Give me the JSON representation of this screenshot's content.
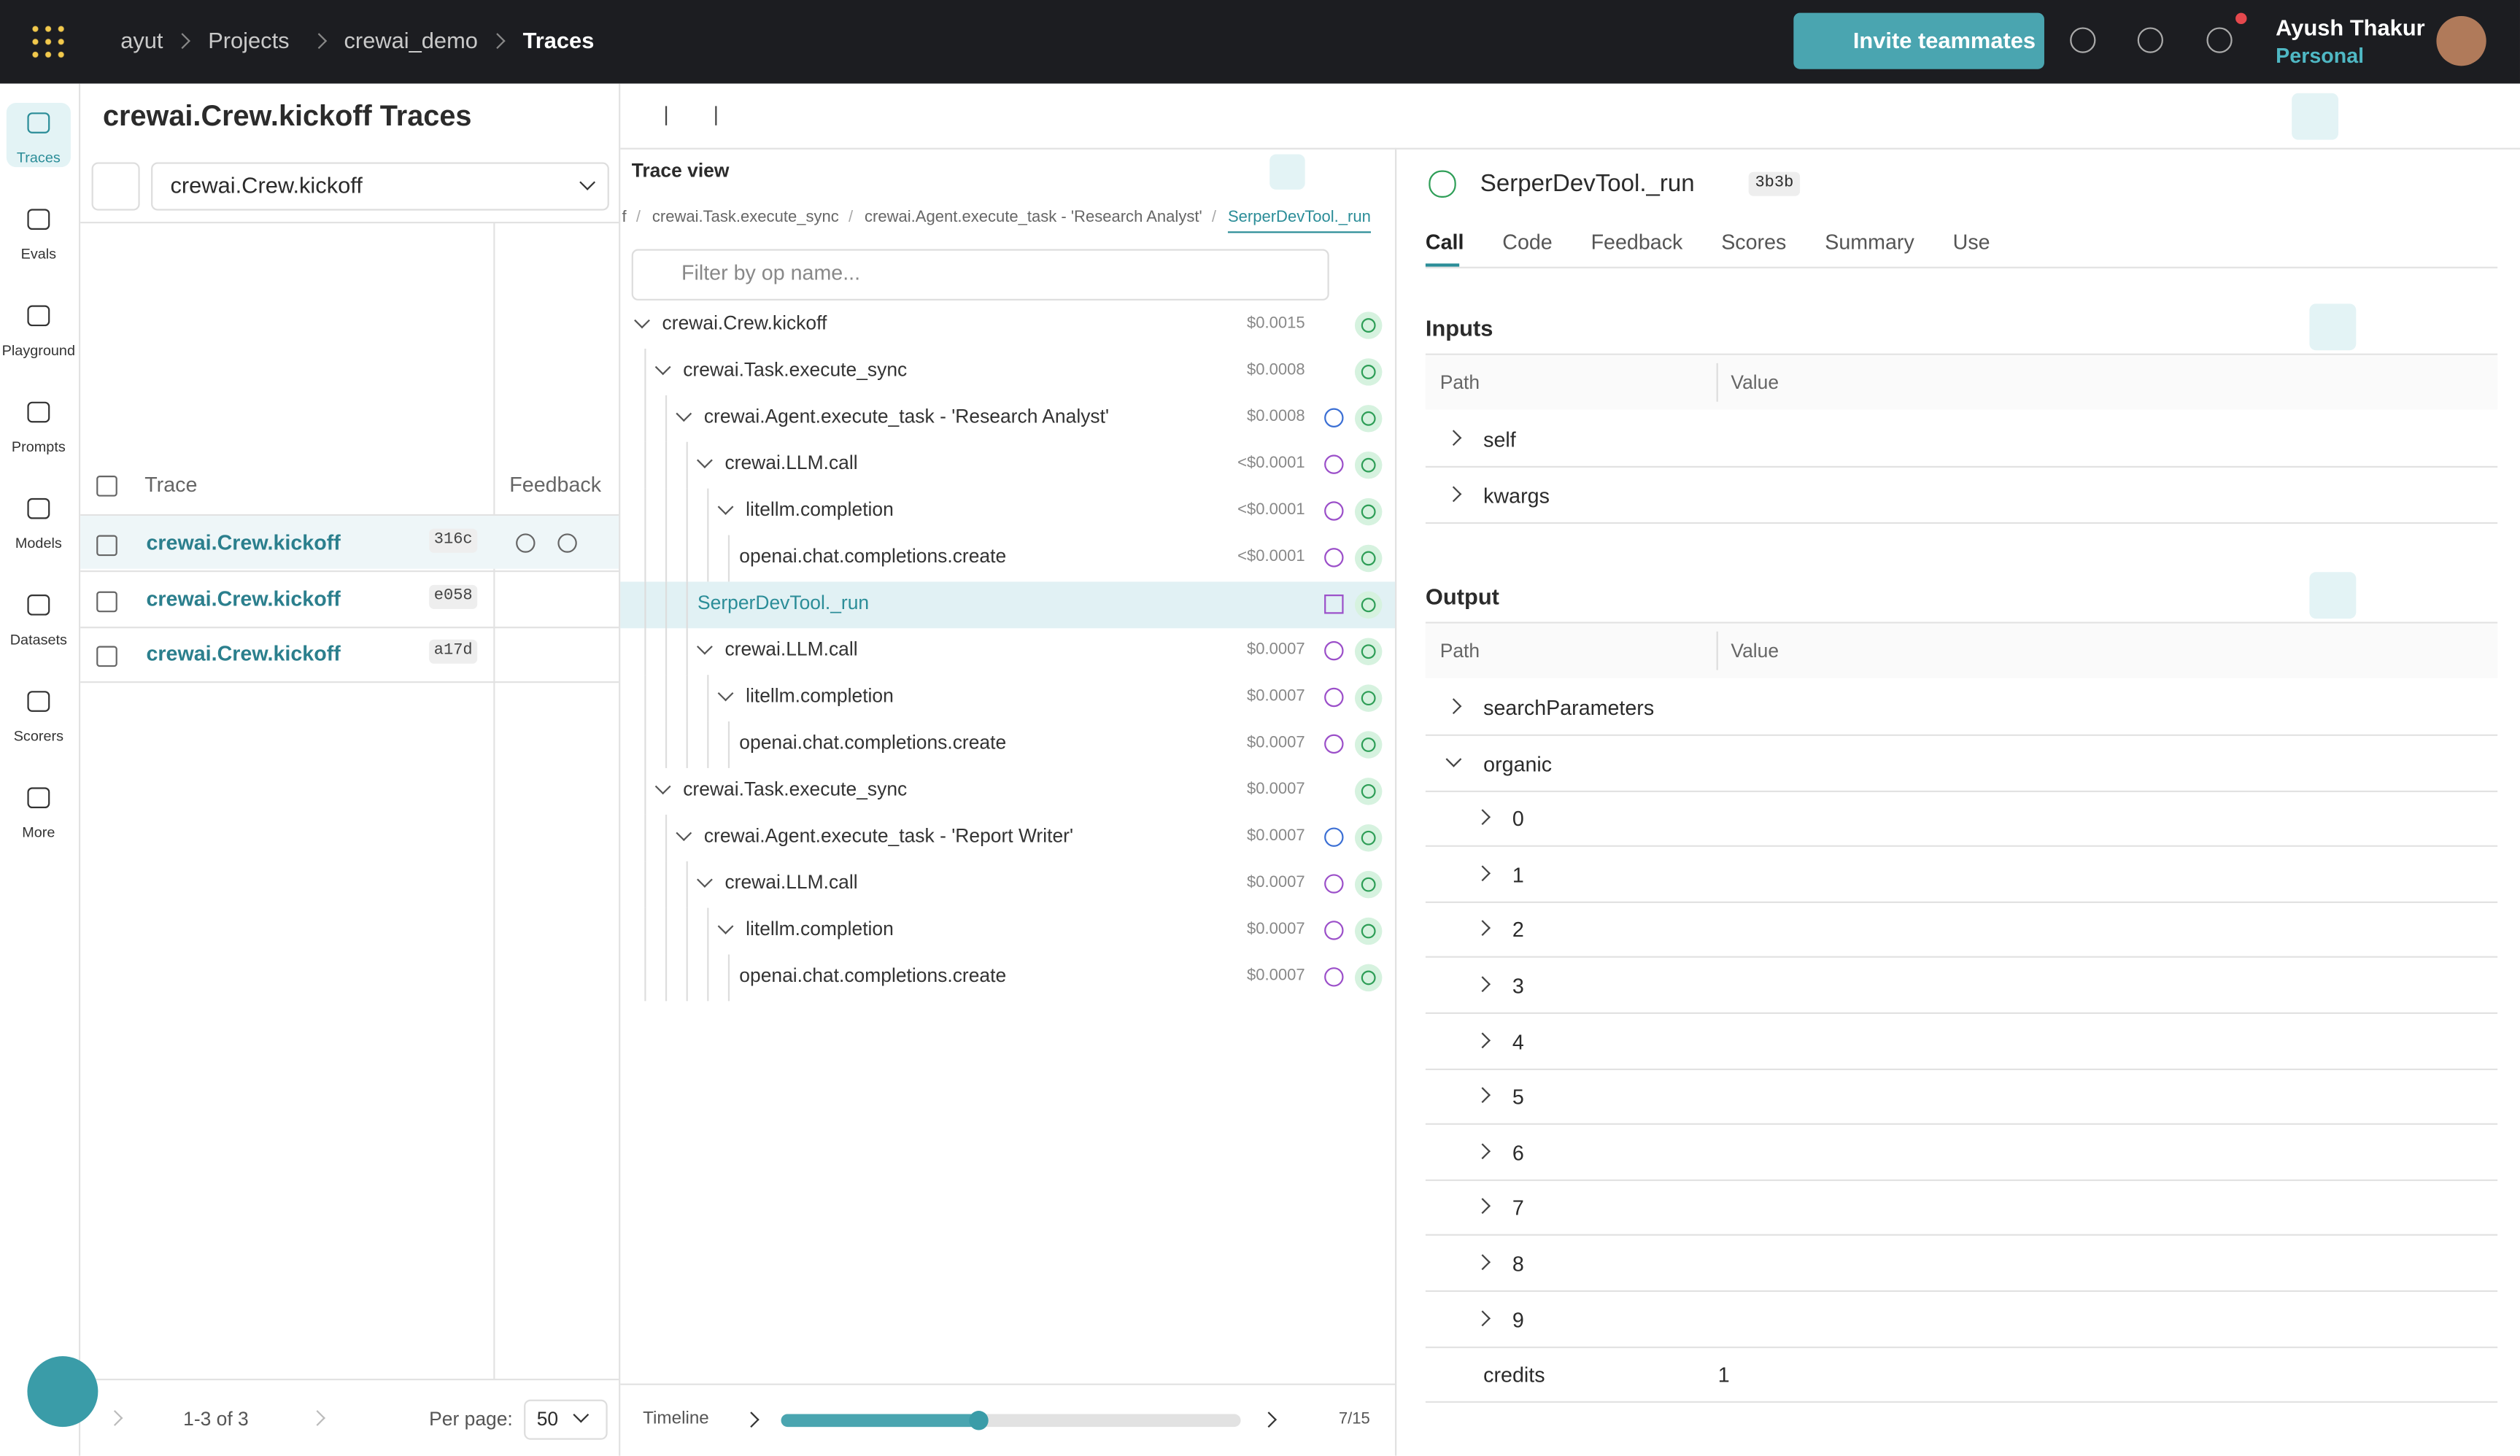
{
  "nav": {
    "breadcrumb": [
      "ayut",
      "Projects",
      "crewai_demo",
      "Traces"
    ],
    "invite": "Invite teammates",
    "user_name": "Ayush Thakur",
    "user_sub": "Personal"
  },
  "sidebar": [
    "Traces",
    "Evals",
    "Playground",
    "Prompts",
    "Models",
    "Datasets",
    "Scorers",
    "More"
  ],
  "traces": {
    "title": "crewai.Crew.kickoff Traces",
    "filter": "crewai.Crew.kickoff",
    "columns": [
      "Trace",
      "Feedback"
    ],
    "rows": [
      {
        "name": "crewai.Crew.kickoff",
        "id": "316c"
      },
      {
        "name": "crewai.Crew.kickoff",
        "id": "e058"
      },
      {
        "name": "crewai.Crew.kickoff",
        "id": "a17d"
      }
    ],
    "pagination": "1-3 of 3",
    "per_page_label": "Per page:",
    "per_page": "50"
  },
  "trace_view": {
    "title": "Trace view",
    "breadcrumb": [
      "f",
      "crewai.Task.execute_sync",
      "crewai.Agent.execute_task - 'Research Analyst'",
      "SerperDevTool._run"
    ],
    "filter": "Filter by op name...",
    "nodes": [
      {
        "label": "crewai.Crew.kickoff",
        "cost": "$0.0015",
        "depth": 0
      },
      {
        "label": "crewai.Task.execute_sync",
        "cost": "$0.0008",
        "depth": 1
      },
      {
        "label": "crewai.Agent.execute_task - 'Research Analyst'",
        "cost": "$0.0008",
        "depth": 2,
        "icon": "agent"
      },
      {
        "label": "crewai.LLM.call",
        "cost": "<$0.0001",
        "depth": 3,
        "icon": "chat"
      },
      {
        "label": "litellm.completion",
        "cost": "<$0.0001",
        "depth": 4,
        "icon": "chat"
      },
      {
        "label": "openai.chat.completions.create",
        "cost": "<$0.0001",
        "depth": 5,
        "icon": "chat",
        "leaf": true
      },
      {
        "label": "SerperDevTool._run",
        "depth": 3,
        "icon": "code",
        "leaf": true,
        "selected": true
      },
      {
        "label": "crewai.LLM.call",
        "cost": "$0.0007",
        "depth": 3,
        "icon": "chat"
      },
      {
        "label": "litellm.completion",
        "cost": "$0.0007",
        "depth": 4,
        "icon": "chat"
      },
      {
        "label": "openai.chat.completions.create",
        "cost": "$0.0007",
        "depth": 5,
        "icon": "chat",
        "leaf": true
      },
      {
        "label": "crewai.Task.execute_sync",
        "cost": "$0.0007",
        "depth": 1
      },
      {
        "label": "crewai.Agent.execute_task - 'Report Writer'",
        "cost": "$0.0007",
        "depth": 2,
        "icon": "agent"
      },
      {
        "label": "crewai.LLM.call",
        "cost": "$0.0007",
        "depth": 3,
        "icon": "chat"
      },
      {
        "label": "litellm.completion",
        "cost": "$0.0007",
        "depth": 4,
        "icon": "chat"
      },
      {
        "label": "openai.chat.completions.create",
        "cost": "$0.0007",
        "depth": 5,
        "icon": "chat",
        "leaf": true
      }
    ],
    "timeline": "Timeline",
    "position": "7/15"
  },
  "detail": {
    "title": "SerperDevTool._run",
    "badge": "3b3b",
    "tabs": [
      "Call",
      "Code",
      "Feedback",
      "Scores",
      "Summary",
      "Use"
    ],
    "inputs": {
      "title": "Inputs",
      "columns": [
        "Path",
        "Value"
      ],
      "rows": [
        {
          "path": "self"
        },
        {
          "path": "kwargs"
        }
      ]
    },
    "output": {
      "title": "Output",
      "columns": [
        "Path",
        "Value"
      ],
      "rows": [
        {
          "path": "searchParameters"
        },
        {
          "path": "organic",
          "open": true
        },
        {
          "path": "0",
          "indent": 1
        },
        {
          "path": "1",
          "indent": 1
        },
        {
          "path": "2",
          "indent": 1
        },
        {
          "path": "3",
          "indent": 1
        },
        {
          "path": "4",
          "indent": 1
        },
        {
          "path": "5",
          "indent": 1
        },
        {
          "path": "6",
          "indent": 1
        },
        {
          "path": "7",
          "indent": 1
        },
        {
          "path": "8",
          "indent": 1
        },
        {
          "path": "9",
          "indent": 1
        },
        {
          "path": "credits",
          "value": "1",
          "leaf": true
        }
      ]
    }
  }
}
